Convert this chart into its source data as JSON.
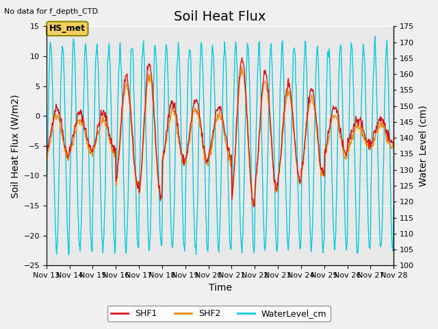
{
  "title": "Soil Heat Flux",
  "top_left_note": "No data for f_depth_CTD",
  "ylabel_left": "Soil Heat Flux (W/m2)",
  "ylabel_right": "Water Level (cm)",
  "xlabel": "Time",
  "ylim_left": [
    -25,
    15
  ],
  "ylim_right": [
    100,
    175
  ],
  "xlim": [
    0,
    15
  ],
  "xtick_positions": [
    0,
    1,
    2,
    3,
    4,
    5,
    6,
    7,
    8,
    9,
    10,
    11,
    12,
    13,
    14,
    15
  ],
  "xtick_labels": [
    "Nov 13",
    "Nov 14",
    "Nov 15",
    "Nov 16",
    "Nov 17",
    "Nov 18",
    "Nov 19",
    "Nov 20",
    "Nov 21",
    "Nov 22",
    "Nov 23",
    "Nov 24",
    "Nov 25",
    "Nov 26",
    "Nov 27",
    "Nov 28"
  ],
  "yticks_left": [
    -25,
    -20,
    -15,
    -10,
    -5,
    0,
    5,
    10,
    15
  ],
  "yticks_right": [
    100,
    105,
    110,
    115,
    120,
    125,
    130,
    135,
    140,
    145,
    150,
    155,
    160,
    165,
    170,
    175
  ],
  "annotation_box": "HS_met",
  "color_SHF1": "#dd1111",
  "color_SHF2": "#ee8800",
  "color_water": "#00ccdd",
  "legend_labels": [
    "SHF1",
    "SHF2",
    "WaterLevel_cm"
  ],
  "bg_color": "#e8e8e8",
  "grid_color": "#ffffff",
  "title_fontsize": 14,
  "axis_fontsize": 10,
  "tick_fontsize": 8,
  "fig_bg_color": "#f0f0f0"
}
